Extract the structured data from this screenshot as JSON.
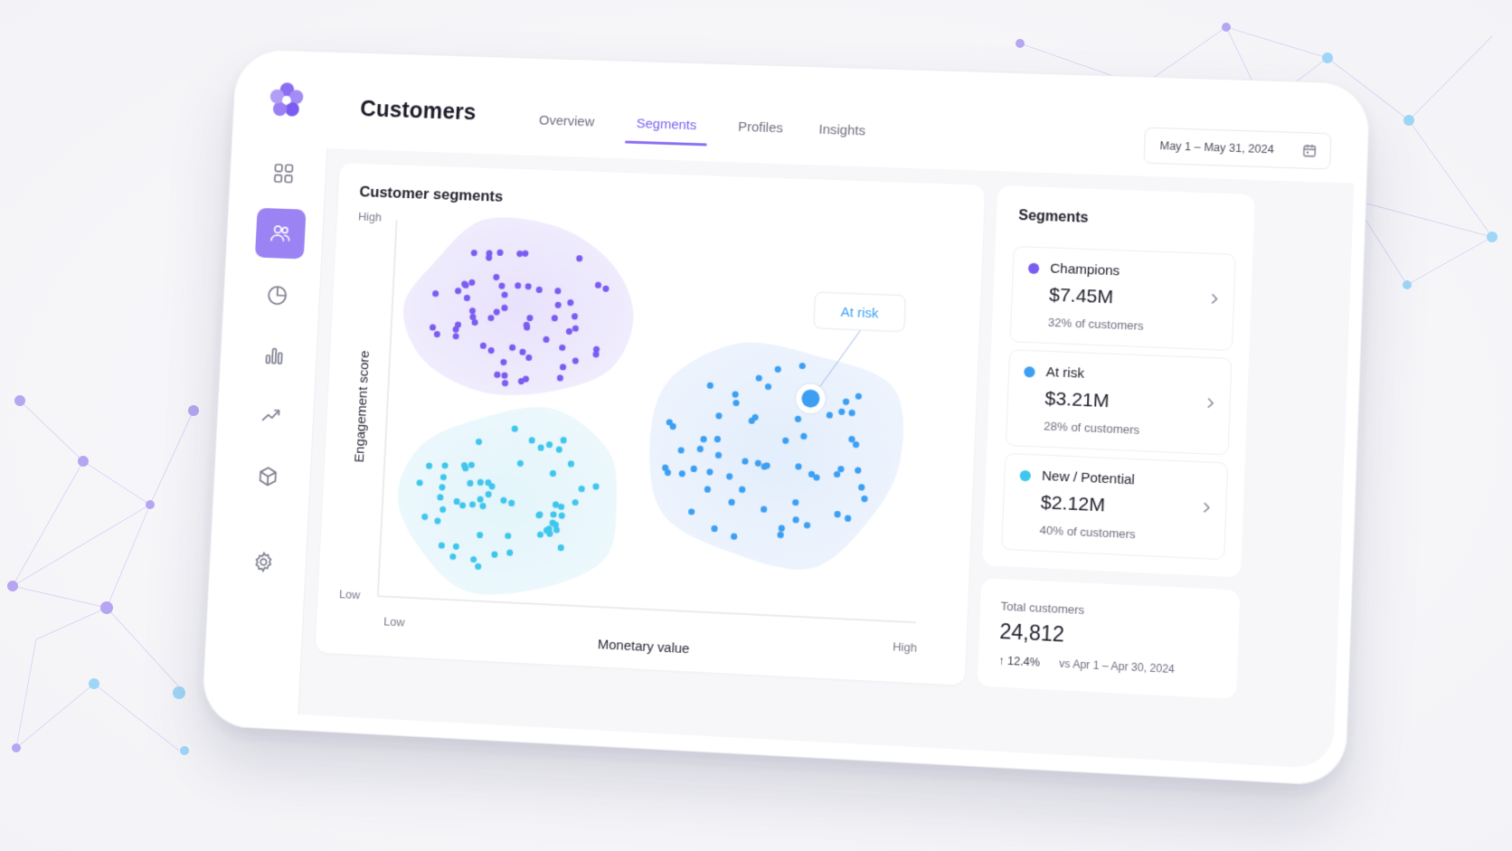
{
  "app": {
    "page_title": "Customers",
    "tabs": [
      {
        "label": "Overview",
        "active": false
      },
      {
        "label": "Segments",
        "active": true
      },
      {
        "label": "Profiles",
        "active": false
      },
      {
        "label": "Insights",
        "active": false
      }
    ],
    "date_range": "May 1 – May 31, 2024"
  },
  "sidebar": {
    "items": [
      {
        "icon": "dashboard-grid-icon",
        "active": false
      },
      {
        "icon": "users-icon",
        "active": true
      },
      {
        "icon": "pie-chart-icon",
        "active": false
      },
      {
        "icon": "bar-chart-icon",
        "active": false
      },
      {
        "icon": "trend-line-icon",
        "active": false
      },
      {
        "icon": "cube-icon",
        "active": false
      },
      {
        "icon": "gear-icon",
        "active": false
      }
    ]
  },
  "chart_card": {
    "title": "Customer segments",
    "callout": "At risk"
  },
  "chart_data": {
    "type": "scatter",
    "xlabel": "Monetary value",
    "ylabel": "Engagement score",
    "x_ticks": [
      "Low",
      "High"
    ],
    "y_ticks": [
      "High",
      "Low"
    ],
    "xlim": [
      0,
      1
    ],
    "ylim": [
      0,
      1
    ],
    "grid": false,
    "series": [
      {
        "name": "Champions",
        "color": "#7b5cf0",
        "cluster_center": [
          0.22,
          0.78
        ],
        "points": 60
      },
      {
        "name": "At risk",
        "color": "#3c9ff2",
        "cluster_center": [
          0.72,
          0.42
        ],
        "points": 60,
        "highlighted": true
      },
      {
        "name": "New / Potential",
        "color": "#3fc6ec",
        "cluster_center": [
          0.22,
          0.26
        ],
        "points": 60
      }
    ]
  },
  "segments": {
    "title": "Segments",
    "items": [
      {
        "name": "Champions",
        "value": "$7.45M",
        "share": "32% of customers",
        "color": "#7b5cf0"
      },
      {
        "name": "At risk",
        "value": "$3.21M",
        "share": "28% of customers",
        "color": "#3c9ff2"
      },
      {
        "name": "New / Potential",
        "value": "$2.12M",
        "share": "40% of customers",
        "color": "#3fc6ec"
      }
    ]
  },
  "total": {
    "label": "Total customers",
    "value": "24,812",
    "delta": "↑ 12.4%",
    "compare": "vs Apr 1 – Apr 30, 2024"
  },
  "colors": {
    "accent": "#8b6ff2",
    "champions": "#7b5cf0",
    "at_risk": "#3c9ff2",
    "new_potential": "#3fc6ec"
  }
}
